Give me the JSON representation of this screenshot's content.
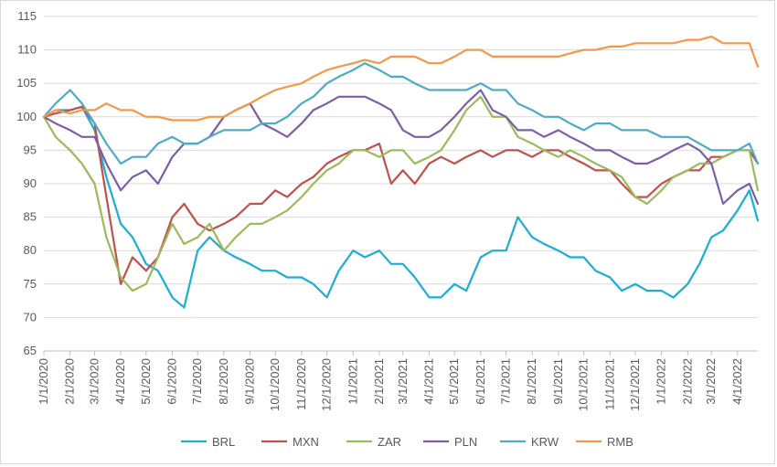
{
  "chart_data": {
    "type": "line",
    "title": "",
    "xlabel": "",
    "ylabel": "",
    "ylim": [
      65,
      115
    ],
    "y_ticks": [
      65,
      70,
      75,
      80,
      85,
      90,
      95,
      100,
      105,
      110,
      115
    ],
    "xlim": [
      "2020-01-01",
      "2022-04-25"
    ],
    "x_tick_labels": [
      "1/1/2020",
      "2/1/2020",
      "3/1/2020",
      "4/1/2020",
      "5/1/2020",
      "6/1/2020",
      "7/1/2020",
      "8/1/2020",
      "9/1/2020",
      "10/1/2020",
      "11/1/2020",
      "12/1/2020",
      "1/1/2021",
      "2/1/2021",
      "3/1/2021",
      "4/1/2021",
      "5/1/2021",
      "6/1/2021",
      "7/1/2021",
      "8/1/2021",
      "9/1/2021",
      "10/1/2021",
      "11/1/2021",
      "12/1/2021",
      "1/1/2022",
      "2/1/2022",
      "3/1/2022",
      "4/1/2022"
    ],
    "x_tick_dates": [
      "2020-01-01",
      "2020-02-01",
      "2020-03-01",
      "2020-04-01",
      "2020-05-01",
      "2020-06-01",
      "2020-07-01",
      "2020-08-01",
      "2020-09-01",
      "2020-10-01",
      "2020-11-01",
      "2020-12-01",
      "2021-01-01",
      "2021-02-01",
      "2021-03-01",
      "2021-04-01",
      "2021-05-01",
      "2021-06-01",
      "2021-07-01",
      "2021-08-01",
      "2021-09-01",
      "2021-10-01",
      "2021-11-01",
      "2021-12-01",
      "2022-01-01",
      "2022-02-01",
      "2022-03-01",
      "2022-04-01"
    ],
    "grid": "horizontal",
    "legend_position": "bottom",
    "series": [
      {
        "name": "BRL",
        "color": "#1aaed6",
        "x": [
          "2020-01-01",
          "2020-01-15",
          "2020-02-01",
          "2020-02-15",
          "2020-03-01",
          "2020-03-15",
          "2020-04-01",
          "2020-04-15",
          "2020-05-01",
          "2020-05-15",
          "2020-06-01",
          "2020-06-15",
          "2020-07-01",
          "2020-07-15",
          "2020-08-01",
          "2020-08-15",
          "2020-09-01",
          "2020-09-15",
          "2020-10-01",
          "2020-10-15",
          "2020-11-01",
          "2020-11-15",
          "2020-12-01",
          "2020-12-15",
          "2021-01-01",
          "2021-01-15",
          "2021-02-01",
          "2021-02-15",
          "2021-03-01",
          "2021-03-15",
          "2021-04-01",
          "2021-04-15",
          "2021-05-01",
          "2021-05-15",
          "2021-06-01",
          "2021-06-15",
          "2021-07-01",
          "2021-07-15",
          "2021-08-01",
          "2021-08-15",
          "2021-09-01",
          "2021-09-15",
          "2021-10-01",
          "2021-10-15",
          "2021-11-01",
          "2021-11-15",
          "2021-12-01",
          "2021-12-15",
          "2022-01-01",
          "2022-01-15",
          "2022-02-01",
          "2022-02-15",
          "2022-03-01",
          "2022-03-15",
          "2022-04-01",
          "2022-04-15",
          "2022-04-25"
        ],
        "y": [
          100,
          101,
          101,
          101.5,
          98,
          91,
          84,
          82,
          78,
          77,
          73,
          71.5,
          80,
          82,
          80,
          79,
          78,
          77,
          77,
          76,
          76,
          75,
          73,
          77,
          80,
          79,
          80,
          78,
          78,
          76,
          73,
          73,
          75,
          74,
          79,
          80,
          80,
          85,
          82,
          81,
          80,
          79,
          79,
          77,
          76,
          74,
          75,
          74,
          74,
          73,
          75,
          78,
          82,
          83,
          86,
          89,
          84.5
        ]
      },
      {
        "name": "MXN",
        "color": "#c0504d",
        "x": [
          "2020-01-01",
          "2020-01-15",
          "2020-02-01",
          "2020-02-15",
          "2020-03-01",
          "2020-03-15",
          "2020-04-01",
          "2020-04-15",
          "2020-05-01",
          "2020-05-15",
          "2020-06-01",
          "2020-06-15",
          "2020-07-01",
          "2020-07-15",
          "2020-08-01",
          "2020-08-15",
          "2020-09-01",
          "2020-09-15",
          "2020-10-01",
          "2020-10-15",
          "2020-11-01",
          "2020-11-15",
          "2020-12-01",
          "2020-12-15",
          "2021-01-01",
          "2021-01-15",
          "2021-02-01",
          "2021-02-15",
          "2021-03-01",
          "2021-03-15",
          "2021-04-01",
          "2021-04-15",
          "2021-05-01",
          "2021-05-15",
          "2021-06-01",
          "2021-06-15",
          "2021-07-01",
          "2021-07-15",
          "2021-08-01",
          "2021-08-15",
          "2021-09-01",
          "2021-09-15",
          "2021-10-01",
          "2021-10-15",
          "2021-11-01",
          "2021-11-15",
          "2021-12-01",
          "2021-12-15",
          "2022-01-01",
          "2022-01-15",
          "2022-02-01",
          "2022-02-15",
          "2022-03-01",
          "2022-03-15",
          "2022-04-01",
          "2022-04-15",
          "2022-04-25"
        ],
        "y": [
          100,
          100.5,
          101,
          101.5,
          99,
          88,
          75,
          79,
          77,
          79,
          85,
          87,
          84,
          83,
          84,
          85,
          87,
          87,
          89,
          88,
          90,
          91,
          93,
          94,
          95,
          95,
          96,
          90,
          92,
          90,
          93,
          94,
          93,
          94,
          95,
          94,
          95,
          95,
          94,
          95,
          95,
          94,
          93,
          92,
          92,
          90,
          88,
          88,
          90,
          91,
          92,
          92,
          94,
          94,
          95,
          95,
          93
        ]
      },
      {
        "name": "ZAR",
        "color": "#9bbb59",
        "x": [
          "2020-01-01",
          "2020-01-15",
          "2020-02-01",
          "2020-02-15",
          "2020-03-01",
          "2020-03-15",
          "2020-04-01",
          "2020-04-15",
          "2020-05-01",
          "2020-05-15",
          "2020-06-01",
          "2020-06-15",
          "2020-07-01",
          "2020-07-15",
          "2020-08-01",
          "2020-08-15",
          "2020-09-01",
          "2020-09-15",
          "2020-10-01",
          "2020-10-15",
          "2020-11-01",
          "2020-11-15",
          "2020-12-01",
          "2020-12-15",
          "2021-01-01",
          "2021-01-15",
          "2021-02-01",
          "2021-02-15",
          "2021-03-01",
          "2021-03-15",
          "2021-04-01",
          "2021-04-15",
          "2021-05-01",
          "2021-05-15",
          "2021-06-01",
          "2021-06-15",
          "2021-07-01",
          "2021-07-15",
          "2021-08-01",
          "2021-08-15",
          "2021-09-01",
          "2021-09-15",
          "2021-10-01",
          "2021-10-15",
          "2021-11-01",
          "2021-11-15",
          "2021-12-01",
          "2021-12-15",
          "2022-01-01",
          "2022-01-15",
          "2022-02-01",
          "2022-02-15",
          "2022-03-01",
          "2022-03-15",
          "2022-04-01",
          "2022-04-15",
          "2022-04-25"
        ],
        "y": [
          100,
          97,
          95,
          93,
          90,
          82,
          76,
          74,
          75,
          79,
          84,
          81,
          82,
          84,
          80,
          82,
          84,
          84,
          85,
          86,
          88,
          90,
          92,
          93,
          95,
          95,
          94,
          95,
          95,
          93,
          94,
          95,
          98,
          101,
          103,
          100,
          100,
          97,
          96,
          95,
          94,
          95,
          94,
          93,
          92,
          91,
          88,
          87,
          89,
          91,
          92,
          93,
          93,
          94,
          95,
          95,
          89
        ]
      },
      {
        "name": "PLN",
        "color": "#7c5ea6",
        "x": [
          "2020-01-01",
          "2020-01-15",
          "2020-02-01",
          "2020-02-15",
          "2020-03-01",
          "2020-03-15",
          "2020-04-01",
          "2020-04-15",
          "2020-05-01",
          "2020-05-15",
          "2020-06-01",
          "2020-06-15",
          "2020-07-01",
          "2020-07-15",
          "2020-08-01",
          "2020-08-15",
          "2020-09-01",
          "2020-09-15",
          "2020-10-01",
          "2020-10-15",
          "2020-11-01",
          "2020-11-15",
          "2020-12-01",
          "2020-12-15",
          "2021-01-01",
          "2021-01-15",
          "2021-02-01",
          "2021-02-15",
          "2021-03-01",
          "2021-03-15",
          "2021-04-01",
          "2021-04-15",
          "2021-05-01",
          "2021-05-15",
          "2021-06-01",
          "2021-06-15",
          "2021-07-01",
          "2021-07-15",
          "2021-08-01",
          "2021-08-15",
          "2021-09-01",
          "2021-09-15",
          "2021-10-01",
          "2021-10-15",
          "2021-11-01",
          "2021-11-15",
          "2021-12-01",
          "2021-12-15",
          "2022-01-01",
          "2022-01-15",
          "2022-02-01",
          "2022-02-15",
          "2022-03-01",
          "2022-03-15",
          "2022-04-01",
          "2022-04-15",
          "2022-04-25"
        ],
        "y": [
          100,
          99,
          98,
          97,
          97,
          93,
          89,
          91,
          92,
          90,
          94,
          96,
          96,
          97,
          100,
          101,
          102,
          99,
          98,
          97,
          99,
          101,
          102,
          103,
          103,
          103,
          102,
          101,
          98,
          97,
          97,
          98,
          100,
          102,
          104,
          101,
          100,
          98,
          98,
          97,
          98,
          97,
          96,
          95,
          95,
          94,
          93,
          93,
          94,
          95,
          96,
          95,
          93,
          87,
          89,
          90,
          87
        ]
      },
      {
        "name": "KRW",
        "color": "#4bacc6",
        "x": [
          "2020-01-01",
          "2020-01-15",
          "2020-02-01",
          "2020-02-15",
          "2020-03-01",
          "2020-03-15",
          "2020-04-01",
          "2020-04-15",
          "2020-05-01",
          "2020-05-15",
          "2020-06-01",
          "2020-06-15",
          "2020-07-01",
          "2020-07-15",
          "2020-08-01",
          "2020-08-15",
          "2020-09-01",
          "2020-09-15",
          "2020-10-01",
          "2020-10-15",
          "2020-11-01",
          "2020-11-15",
          "2020-12-01",
          "2020-12-15",
          "2021-01-01",
          "2021-01-15",
          "2021-02-01",
          "2021-02-15",
          "2021-03-01",
          "2021-03-15",
          "2021-04-01",
          "2021-04-15",
          "2021-05-01",
          "2021-05-15",
          "2021-06-01",
          "2021-06-15",
          "2021-07-01",
          "2021-07-15",
          "2021-08-01",
          "2021-08-15",
          "2021-09-01",
          "2021-09-15",
          "2021-10-01",
          "2021-10-15",
          "2021-11-01",
          "2021-11-15",
          "2021-12-01",
          "2021-12-15",
          "2022-01-01",
          "2022-01-15",
          "2022-02-01",
          "2022-02-15",
          "2022-03-01",
          "2022-03-15",
          "2022-04-01",
          "2022-04-15",
          "2022-04-25"
        ],
        "y": [
          100,
          102,
          104,
          102,
          99,
          96,
          93,
          94,
          94,
          96,
          97,
          96,
          96,
          97,
          98,
          98,
          98,
          99,
          99,
          100,
          102,
          103,
          105,
          106,
          107,
          108,
          107,
          106,
          106,
          105,
          104,
          104,
          104,
          104,
          105,
          104,
          104,
          102,
          101,
          100,
          100,
          99,
          98,
          99,
          99,
          98,
          98,
          98,
          97,
          97,
          97,
          96,
          95,
          95,
          95,
          96,
          93
        ]
      },
      {
        "name": "RMB",
        "color": "#f79646",
        "x": [
          "2020-01-01",
          "2020-01-15",
          "2020-02-01",
          "2020-02-15",
          "2020-03-01",
          "2020-03-15",
          "2020-04-01",
          "2020-04-15",
          "2020-05-01",
          "2020-05-15",
          "2020-06-01",
          "2020-06-15",
          "2020-07-01",
          "2020-07-15",
          "2020-08-01",
          "2020-08-15",
          "2020-09-01",
          "2020-09-15",
          "2020-10-01",
          "2020-10-15",
          "2020-11-01",
          "2020-11-15",
          "2020-12-01",
          "2020-12-15",
          "2021-01-01",
          "2021-01-15",
          "2021-02-01",
          "2021-02-15",
          "2021-03-01",
          "2021-03-15",
          "2021-04-01",
          "2021-04-15",
          "2021-05-01",
          "2021-05-15",
          "2021-06-01",
          "2021-06-15",
          "2021-07-01",
          "2021-07-15",
          "2021-08-01",
          "2021-08-15",
          "2021-09-01",
          "2021-09-15",
          "2021-10-01",
          "2021-10-15",
          "2021-11-01",
          "2021-11-15",
          "2021-12-01",
          "2021-12-15",
          "2022-01-01",
          "2022-01-15",
          "2022-02-01",
          "2022-02-15",
          "2022-03-01",
          "2022-03-15",
          "2022-04-01",
          "2022-04-15",
          "2022-04-25"
        ],
        "y": [
          100,
          101,
          100.5,
          101,
          101,
          102,
          101,
          101,
          100,
          100,
          99.5,
          99.5,
          99.5,
          100,
          100,
          101,
          102,
          103,
          104,
          104.5,
          105,
          106,
          107,
          107.5,
          108,
          108.5,
          108,
          109,
          109,
          109,
          108,
          108,
          109,
          110,
          110,
          109,
          109,
          109,
          109,
          109,
          109,
          109.5,
          110,
          110,
          110.5,
          110.5,
          111,
          111,
          111,
          111,
          111.5,
          111.5,
          112,
          111,
          111,
          111,
          107.5
        ]
      }
    ]
  }
}
